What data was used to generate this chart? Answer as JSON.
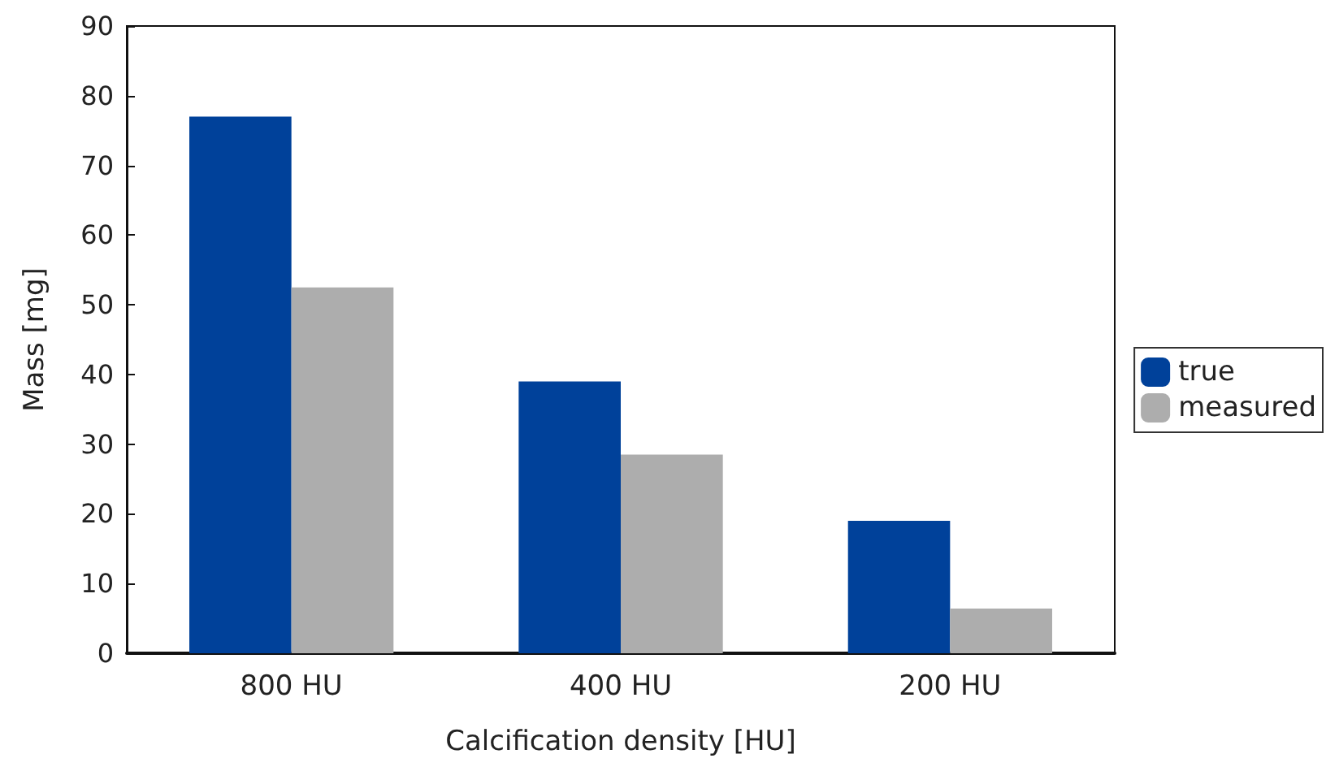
{
  "chart_data": {
    "type": "bar",
    "xlabel": "Calcification density [HU]",
    "ylabel": "Mass [mg]",
    "categories": [
      "800 HU",
      "400 HU",
      "200 HU"
    ],
    "series": [
      {
        "name": "true",
        "color": "#00419a",
        "values": [
          77,
          39,
          19
        ]
      },
      {
        "name": "measured",
        "color": "#adadad",
        "values": [
          52.5,
          28.5,
          6.4
        ]
      }
    ],
    "ylim": [
      0,
      90
    ],
    "yticks": [
      0,
      10,
      20,
      30,
      40,
      50,
      60,
      70,
      80,
      90
    ],
    "grid": false,
    "legend": "right"
  }
}
